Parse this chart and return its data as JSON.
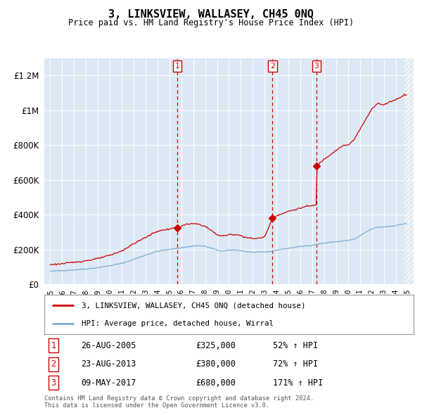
{
  "title": "3, LINKSVIEW, WALLASEY, CH45 0NQ",
  "subtitle": "Price paid vs. HM Land Registry's House Price Index (HPI)",
  "legend_line1": "3, LINKSVIEW, WALLASEY, CH45 0NQ (detached house)",
  "legend_line2": "HPI: Average price, detached house, Wirral",
  "footnote": "Contains HM Land Registry data © Crown copyright and database right 2024.\nThis data is licensed under the Open Government Licence v3.0.",
  "sales": [
    {
      "num": 1,
      "date": "26-AUG-2005",
      "price": 325000,
      "pct": "52% ↑ HPI",
      "year": 2005.65
    },
    {
      "num": 2,
      "date": "23-AUG-2013",
      "price": 380000,
      "pct": "72% ↑ HPI",
      "year": 2013.65
    },
    {
      "num": 3,
      "date": "09-MAY-2017",
      "price": 680000,
      "pct": "171% ↑ HPI",
      "year": 2017.36
    }
  ],
  "hpi_color": "#7aadd4",
  "house_color": "#cc0000",
  "vline_color": "#cc0000",
  "bg_color": "#dce9f5",
  "plot_bg": "#ffffff",
  "ylim": [
    0,
    1300000
  ],
  "yticks": [
    0,
    200000,
    400000,
    600000,
    800000,
    1000000,
    1200000
  ],
  "xlim_left": 1994.5,
  "xlim_right": 2025.5
}
